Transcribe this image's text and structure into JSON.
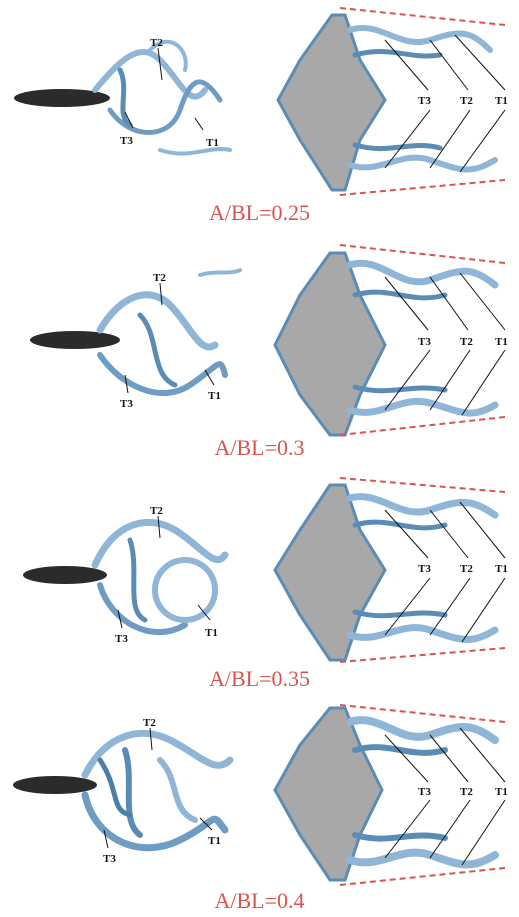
{
  "figure": {
    "panels": [
      {
        "caption": "A/BL=0.25",
        "left_labels": [
          "T2",
          "T3",
          "T1"
        ],
        "right_labels": [
          "T3",
          "T2",
          "T1"
        ]
      },
      {
        "caption": "A/BL=0.3",
        "left_labels": [
          "T2",
          "T3",
          "T1"
        ],
        "right_labels": [
          "T3",
          "T2",
          "T1"
        ]
      },
      {
        "caption": "A/BL=0.35",
        "left_labels": [
          "T2",
          "T3",
          "T1"
        ],
        "right_labels": [
          "T3",
          "T2",
          "T1"
        ]
      },
      {
        "caption": "A/BL=0.4",
        "left_labels": [
          "T2",
          "T3",
          "T1"
        ],
        "right_labels": [
          "T3",
          "T2",
          "T1"
        ]
      }
    ],
    "colors": {
      "vortex": "#8fb6d6",
      "vortex_dark": "#4a7fa6",
      "body": "#9a9a9a",
      "fish": "#2b2b2b",
      "guide_line": "#d9534f",
      "caption": "#d9534f"
    }
  }
}
